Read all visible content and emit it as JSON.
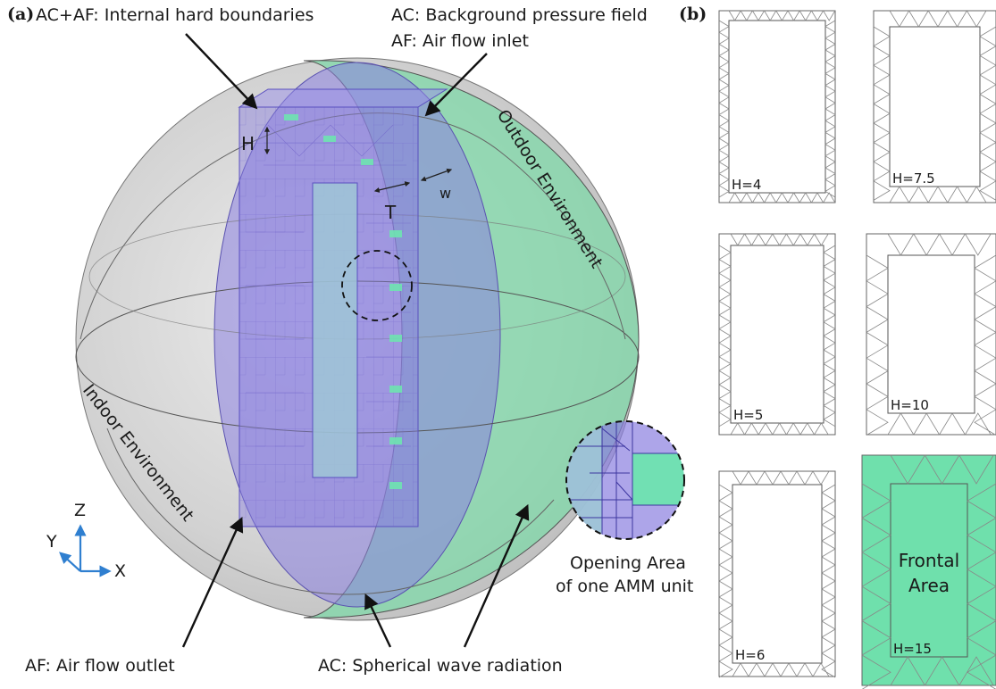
{
  "panel_a": {
    "tag": "(a)",
    "labels": {
      "internal_boundaries": "AC+AF: Internal hard boundaries",
      "background_pressure": "AC: Background pressure field",
      "air_inlet": "AF: Air flow inlet",
      "outdoor": "Outdoor Environment",
      "indoor": "Indoor Environment",
      "air_outlet": "AF: Air flow outlet",
      "spherical_radiation": "AC: Spherical wave radiation",
      "opening_area_1": "Opening Area",
      "opening_area_2": "of one AMM unit"
    },
    "dimensions": {
      "h": "H",
      "t": "T",
      "w": "w"
    },
    "axes": {
      "z": "Z",
      "y": "Y",
      "x": "X"
    },
    "colors": {
      "sphere": "#cfcfcf",
      "outdoor": "#7fd8a8",
      "structure": "#8a7fe0",
      "highlight": "#6ee3b0",
      "axis": "#2f7fd0"
    }
  },
  "panel_b": {
    "tag": "(b)",
    "configs": [
      {
        "label": "H=4"
      },
      {
        "label": "H=7.5"
      },
      {
        "label": "H=5"
      },
      {
        "label": "H=10"
      },
      {
        "label": "H=6"
      },
      {
        "label": "H=15"
      }
    ],
    "frontal_1": "Frontal",
    "frontal_2": "Area",
    "frontal_color": "#6fe0ac"
  }
}
